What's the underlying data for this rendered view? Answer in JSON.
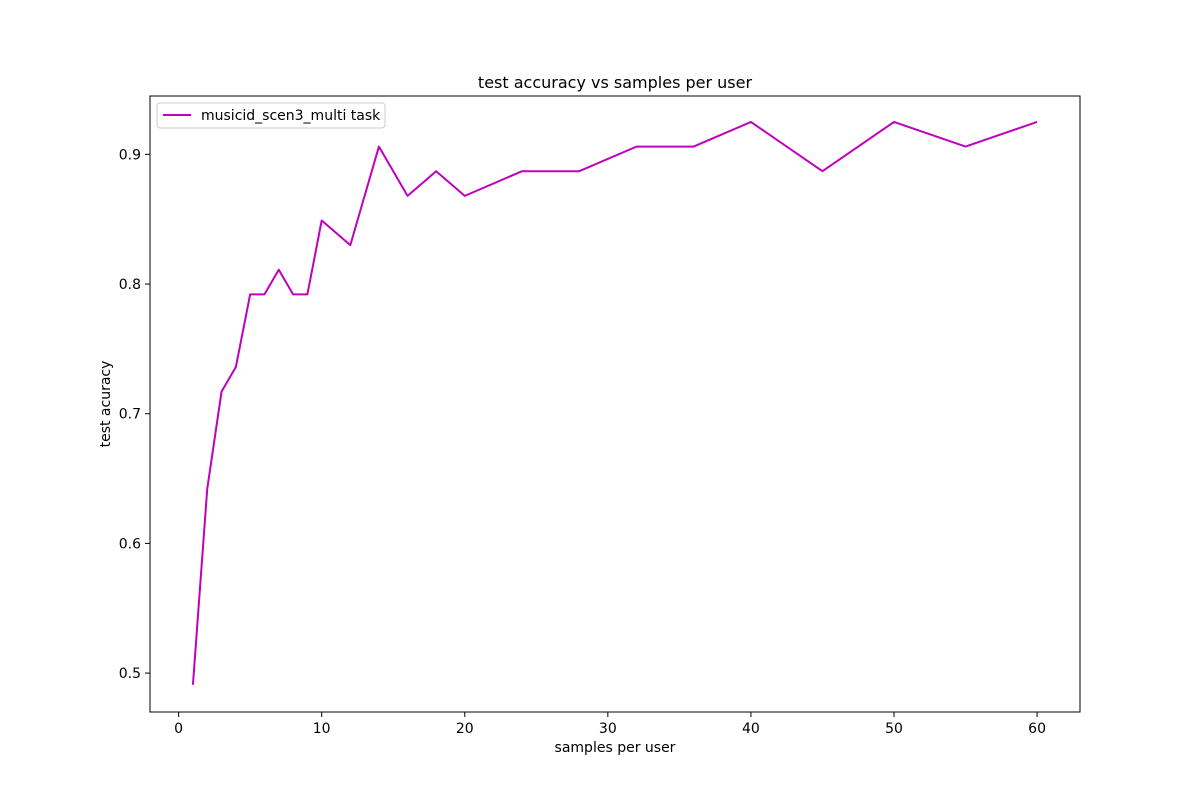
{
  "chart_data": {
    "type": "line",
    "title": "test accuracy vs samples per user",
    "xlabel": "samples per user",
    "ylabel": "test acuracy",
    "xlim": [
      -2,
      63
    ],
    "ylim": [
      0.47,
      0.945
    ],
    "xticks": [
      0,
      10,
      20,
      30,
      40,
      50,
      60
    ],
    "yticks": [
      0.5,
      0.6,
      0.7,
      0.8,
      0.9
    ],
    "grid": false,
    "legend_position": "upper-left",
    "series": [
      {
        "name": "musicid_scen3_multi task",
        "color": "#bf00bf",
        "x": [
          1,
          2,
          3,
          4,
          5,
          6,
          7,
          8,
          9,
          10,
          12,
          14,
          16,
          18,
          20,
          24,
          28,
          32,
          36,
          40,
          45,
          50,
          55,
          60
        ],
        "y": [
          0.491,
          0.642,
          0.717,
          0.736,
          0.792,
          0.792,
          0.811,
          0.792,
          0.792,
          0.849,
          0.83,
          0.906,
          0.868,
          0.887,
          0.868,
          0.887,
          0.887,
          0.906,
          0.906,
          0.925,
          0.887,
          0.925,
          0.906,
          0.925
        ]
      }
    ]
  }
}
